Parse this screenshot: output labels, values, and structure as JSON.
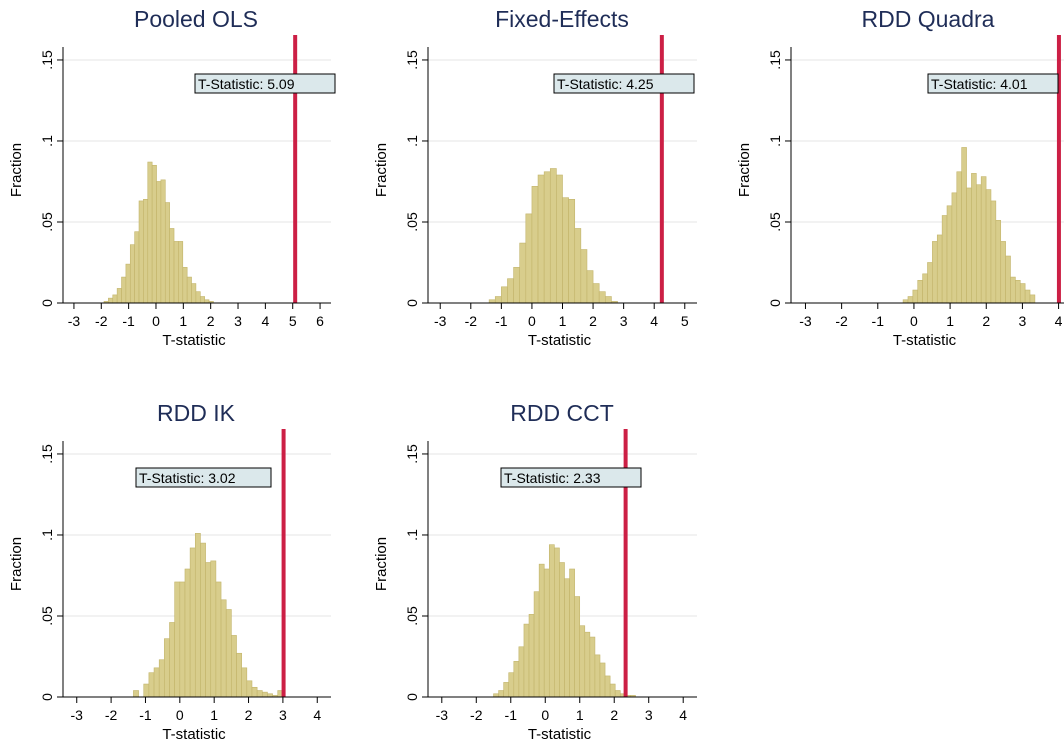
{
  "colors": {
    "bar_fill": "#d8cd8c",
    "bar_edge": "#c2b46a",
    "threshold_line": "#cc1f45",
    "title": "#1f2d57",
    "grid": "#e6e6e6",
    "label_box": "#dbe8eb"
  },
  "chart_data": [
    {
      "type": "bar",
      "title": "Pooled OLS",
      "xlabel": "T-statistic",
      "ylabel": "Fraction",
      "xticks": [
        -3,
        -2,
        -1,
        0,
        1,
        2,
        3,
        4,
        5,
        6
      ],
      "xlim": [
        -3.4,
        6.4
      ],
      "yticks": [
        0,
        0.05,
        0.1,
        0.15
      ],
      "ytick_labels": [
        "0",
        ".05",
        ".1",
        ".15"
      ],
      "ylim": [
        0,
        0.158
      ],
      "bin_start": -1.9,
      "bin_width": 0.16,
      "values": [
        0.001,
        0.003,
        0.005,
        0.009,
        0.016,
        0.024,
        0.036,
        0.044,
        0.063,
        0.064,
        0.087,
        0.085,
        0.075,
        0.076,
        0.062,
        0.046,
        0.038,
        0.038,
        0.022,
        0.016,
        0.012,
        0.007,
        0.004,
        0.002,
        0.001
      ],
      "threshold": 5.09,
      "annotation": "T-Statistic: 5.09"
    },
    {
      "type": "bar",
      "title": "Fixed-Effects",
      "xlabel": "T-statistic",
      "ylabel": "Fraction",
      "xticks": [
        -3,
        -2,
        -1,
        0,
        1,
        2,
        3,
        4,
        5
      ],
      "xlim": [
        -3.4,
        5.4
      ],
      "yticks": [
        0,
        0.05,
        0.1,
        0.15
      ],
      "ytick_labels": [
        "0",
        ".05",
        ".1",
        ".15"
      ],
      "ylim": [
        0,
        0.158
      ],
      "bin_start": -1.4,
      "bin_width": 0.2,
      "values": [
        0.002,
        0.004,
        0.01,
        0.015,
        0.022,
        0.037,
        0.055,
        0.072,
        0.079,
        0.081,
        0.083,
        0.079,
        0.065,
        0.064,
        0.046,
        0.033,
        0.02,
        0.012,
        0.007,
        0.004,
        0.001
      ],
      "threshold": 4.25,
      "annotation": "T-Statistic: 4.25"
    },
    {
      "type": "bar",
      "title": "RDD Quadra",
      "xlabel": "T-statistic",
      "ylabel": "Fraction",
      "xticks": [
        -3,
        -2,
        -1,
        0,
        1,
        2,
        3,
        4
      ],
      "xlim": [
        -3.4,
        4.15
      ],
      "yticks": [
        0,
        0.05,
        0.1,
        0.15
      ],
      "ytick_labels": [
        "0",
        ".05",
        ".1",
        ".15"
      ],
      "ylim": [
        0,
        0.158
      ],
      "bin_start": -0.3,
      "bin_width": 0.135,
      "values": [
        0.002,
        0.004,
        0.008,
        0.014,
        0.018,
        0.025,
        0.038,
        0.042,
        0.054,
        0.06,
        0.068,
        0.081,
        0.096,
        0.071,
        0.08,
        0.073,
        0.078,
        0.07,
        0.063,
        0.051,
        0.038,
        0.029,
        0.016,
        0.014,
        0.012,
        0.008,
        0.005
      ],
      "threshold": 4.01,
      "annotation": "T-Statistic: 4.01"
    },
    {
      "type": "bar",
      "title": "RDD IK",
      "xlabel": "T-statistic",
      "ylabel": "Fraction",
      "xticks": [
        -3,
        -2,
        -1,
        0,
        1,
        2,
        3,
        4
      ],
      "xlim": [
        -3.4,
        4.4
      ],
      "yticks": [
        0,
        0.05,
        0.1,
        0.15
      ],
      "ytick_labels": [
        "0",
        ".05",
        ".1",
        ".15"
      ],
      "ylim": [
        0,
        0.158
      ],
      "bin_start": -1.35,
      "bin_width": 0.15,
      "values": [
        0.004,
        0.0,
        0.008,
        0.015,
        0.018,
        0.023,
        0.036,
        0.046,
        0.071,
        0.071,
        0.079,
        0.092,
        0.101,
        0.095,
        0.083,
        0.084,
        0.071,
        0.06,
        0.054,
        0.038,
        0.027,
        0.018,
        0.01,
        0.006,
        0.004,
        0.003,
        0.002,
        0.001,
        0.004
      ],
      "threshold": 3.02,
      "annotation": "T-Statistic: 3.02"
    },
    {
      "type": "bar",
      "title": "RDD CCT",
      "xlabel": "T-statistic",
      "ylabel": "Fraction",
      "xticks": [
        -3,
        -2,
        -1,
        0,
        1,
        2,
        3,
        4
      ],
      "xlim": [
        -3.4,
        4.4
      ],
      "yticks": [
        0,
        0.05,
        0.1,
        0.15
      ],
      "ytick_labels": [
        "0",
        ".05",
        ".1",
        ".15"
      ],
      "ylim": [
        0,
        0.158
      ],
      "bin_start": -1.5,
      "bin_width": 0.147,
      "values": [
        0.002,
        0.004,
        0.009,
        0.015,
        0.022,
        0.031,
        0.045,
        0.051,
        0.065,
        0.082,
        0.079,
        0.094,
        0.092,
        0.083,
        0.073,
        0.079,
        0.062,
        0.044,
        0.04,
        0.037,
        0.026,
        0.021,
        0.013,
        0.008,
        0.004,
        0.002,
        0.001,
        0.001
      ],
      "threshold": 2.33,
      "annotation": "T-Statistic: 2.33"
    }
  ]
}
